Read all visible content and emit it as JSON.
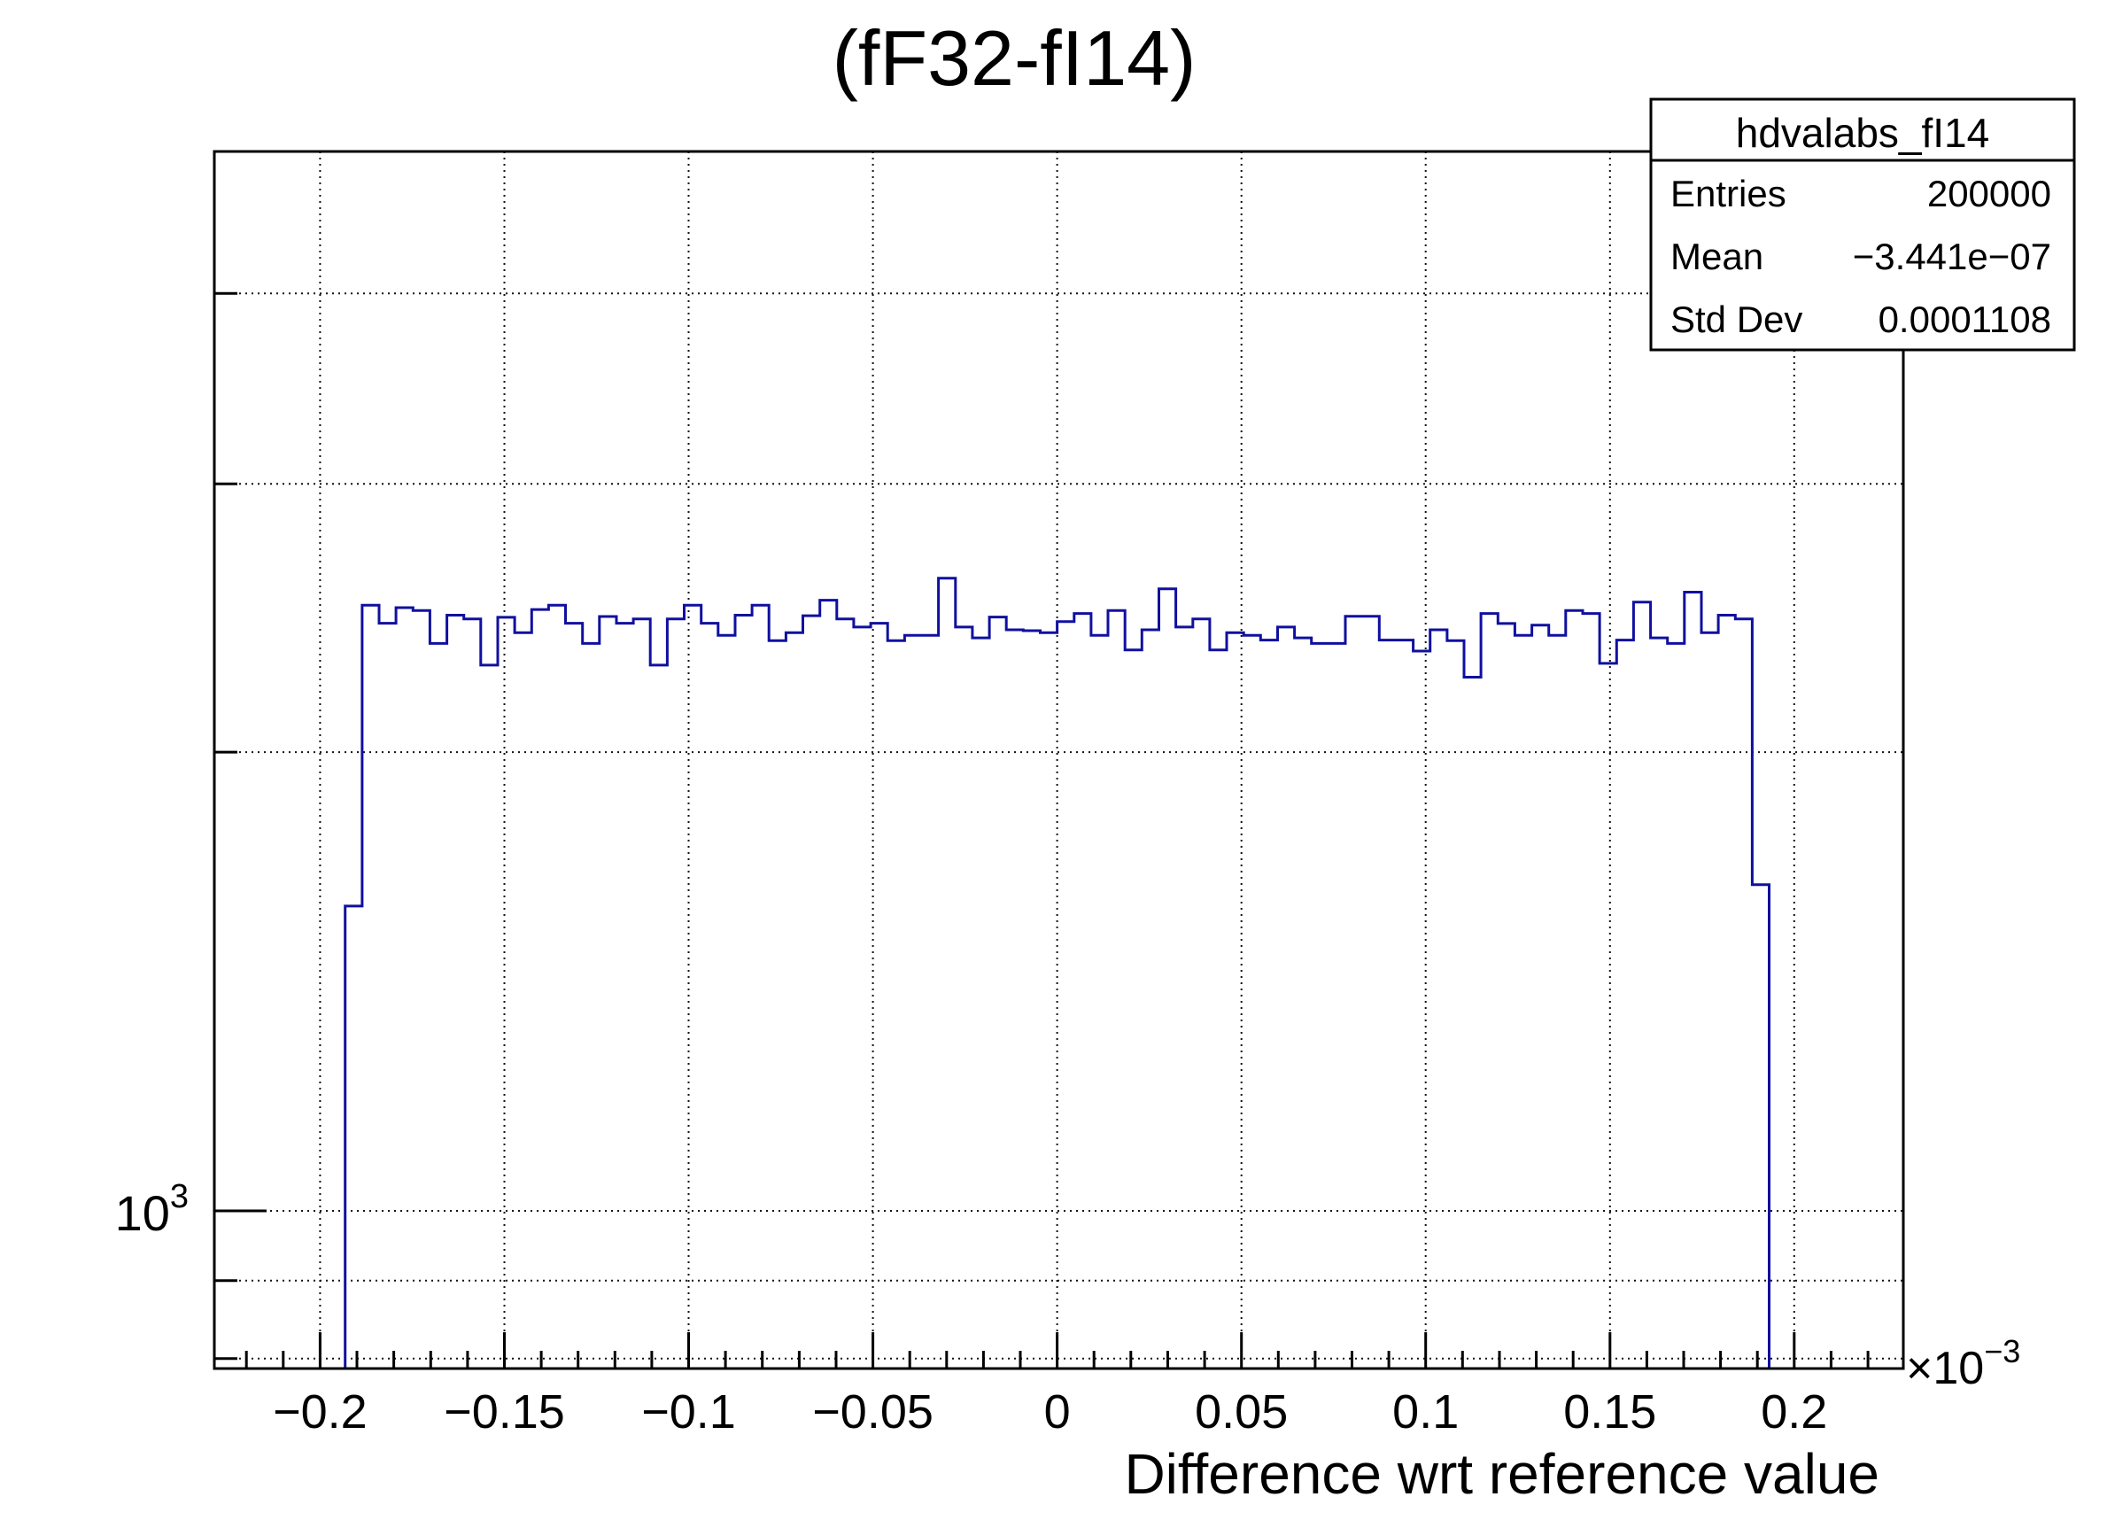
{
  "title": "(fF32-fI14)",
  "stats": {
    "header": "hdvalabs_fI14",
    "rows": [
      {
        "label": "Entries",
        "value": "200000"
      },
      {
        "label": "Mean",
        "value": "−3.441e−07"
      },
      {
        "label": "Std Dev",
        "value": "0.0001108"
      }
    ]
  },
  "colors": {
    "histogram_line": "#1010a0",
    "frame": "#000000",
    "grid": "#111111",
    "text": "#000000",
    "background": "#ffffff"
  },
  "chart_data": {
    "type": "bar",
    "subtype": "histogram-step-outline-log-y",
    "title": "(fF32-fI14)",
    "xlabel": "Difference wrt reference value",
    "ylabel": "",
    "x_multiplier_base": "×10",
    "x_multiplier_exp": "−3",
    "y_label_base": "10",
    "y_label_exp": "3",
    "legend_position": "none",
    "grid": true,
    "x_axis": {
      "min": -0.2287,
      "max": 0.2296,
      "unit_scale": "1e-3",
      "minor_step": 0.01,
      "ticks": [
        {
          "v": -0.2,
          "label": "−0.2"
        },
        {
          "v": -0.15,
          "label": "−0.15"
        },
        {
          "v": -0.1,
          "label": "−0.1"
        },
        {
          "v": -0.05,
          "label": "−0.05"
        },
        {
          "v": 0,
          "label": "0"
        },
        {
          "v": 0.05,
          "label": "0.05"
        },
        {
          "v": 0.1,
          "label": "0.1"
        },
        {
          "v": 0.15,
          "label": "0.15"
        },
        {
          "v": 0.2,
          "label": "0.2"
        }
      ]
    },
    "y_axis": {
      "scale": "log",
      "min": 788,
      "max": 4957,
      "major_ticks": [
        1000
      ],
      "major_tick_labels": [
        "10^3"
      ],
      "minor_ticks": [
        800,
        900,
        2000,
        3000,
        4000
      ]
    },
    "histogram": {
      "entries": 200000,
      "mean": -3.441e-07,
      "std_dev": 0.0001108,
      "first_bin_left": -0.1932,
      "bin_width": 0.0046,
      "counts": [
        1585,
        2497,
        2430,
        2488,
        2477,
        2357,
        2460,
        2446,
        2281,
        2452,
        2396,
        2481,
        2497,
        2430,
        2357,
        2455,
        2430,
        2446,
        2281,
        2446,
        2497,
        2430,
        2386,
        2460,
        2497,
        2367,
        2396,
        2458,
        2516,
        2446,
        2416,
        2430,
        2367,
        2386,
        2386,
        2601,
        2416,
        2377,
        2453,
        2406,
        2403,
        2396,
        2436,
        2466,
        2386,
        2477,
        2334,
        2406,
        2560,
        2416,
        2446,
        2334,
        2396,
        2386,
        2369,
        2416,
        2377,
        2357,
        2357,
        2456,
        2456,
        2369,
        2369,
        2330,
        2406,
        2367,
        2240,
        2466,
        2429,
        2386,
        2423,
        2386,
        2477,
        2466,
        2287,
        2369,
        2509,
        2377,
        2357,
        2547,
        2396,
        2460,
        2446,
        1637
      ]
    }
  }
}
